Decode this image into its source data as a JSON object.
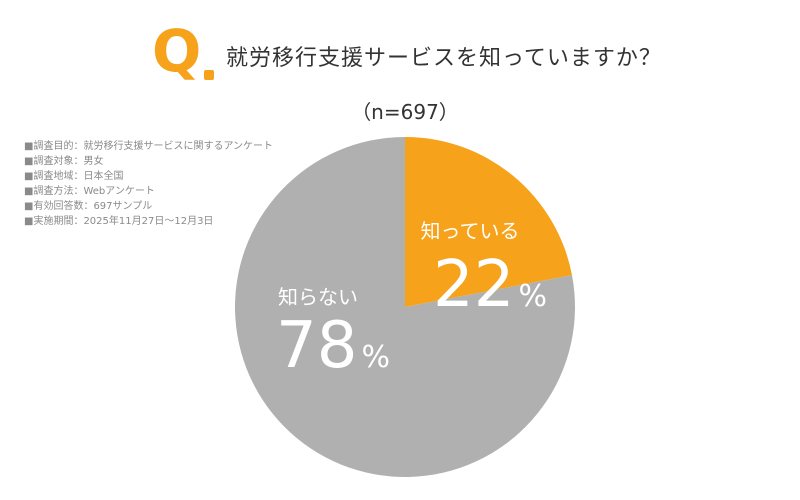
{
  "header": {
    "q_label": "Q",
    "question": "就労移行支援サービスを知っていますか？",
    "sample": "（n=697）"
  },
  "notes": [
    "■調査目的：就労移行支援サービスに関するアンケート",
    "■調査対象：男女",
    "■調査地域：日本全国",
    "■調査方法：Webアンケート",
    "■有効回答数：697サンプル",
    "■実施期間：2025年11月27日〜12月3日"
  ],
  "colors": {
    "accent": "#f6a21a",
    "gray": "#b0b0b0",
    "text": "#333333"
  },
  "chart_data": {
    "type": "pie",
    "title": "就労移行支援サービスを知っていますか？",
    "slices": [
      {
        "label": "知っている",
        "value": 22,
        "unit": "%",
        "color": "#f6a21a"
      },
      {
        "label": "知らない",
        "value": 78,
        "unit": "%",
        "color": "#b0b0b0"
      }
    ],
    "start": "top",
    "direction": "clockwise"
  }
}
